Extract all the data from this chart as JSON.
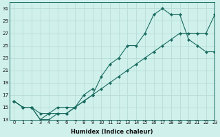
{
  "xlabel": "Humidex (Indice chaleur)",
  "bg_color": "#cff0eb",
  "grid_color": "#b8ddd8",
  "line_color": "#1a6b60",
  "series": [
    {
      "x": [
        0,
        1,
        2,
        3,
        4,
        5,
        6,
        7,
        8,
        9,
        10,
        11,
        12,
        13,
        14,
        15,
        16,
        17,
        18,
        19,
        20,
        21,
        22,
        23
      ],
      "y": [
        16,
        15,
        15,
        13,
        13,
        14,
        14,
        15,
        16,
        17,
        20,
        22,
        23,
        25,
        25,
        27,
        30,
        31,
        30,
        30,
        26,
        25,
        24,
        24
      ]
    },
    {
      "x": [
        0,
        1,
        2,
        3,
        4,
        5,
        6,
        7,
        8,
        9,
        10,
        11,
        12,
        13,
        14,
        15,
        16,
        17,
        18,
        19,
        20,
        21,
        22,
        23
      ],
      "y": [
        16,
        15,
        15,
        14,
        14,
        15,
        15,
        15,
        16,
        17,
        18,
        19,
        20,
        21,
        22,
        23,
        24,
        25,
        26,
        27,
        27,
        27,
        27,
        30
      ]
    },
    {
      "x": [
        0,
        1,
        2,
        3,
        4,
        5,
        6,
        7,
        8,
        9
      ],
      "y": [
        16,
        15,
        15,
        13,
        14,
        14,
        14,
        15,
        17,
        18
      ]
    }
  ],
  "xlim": [
    -0.5,
    23
  ],
  "ylim": [
    13,
    32
  ],
  "yticks": [
    13,
    15,
    17,
    19,
    21,
    23,
    25,
    27,
    29,
    31
  ],
  "xticks": [
    0,
    1,
    2,
    3,
    4,
    5,
    6,
    7,
    8,
    9,
    10,
    11,
    12,
    13,
    14,
    15,
    16,
    17,
    18,
    19,
    20,
    21,
    22,
    23
  ]
}
